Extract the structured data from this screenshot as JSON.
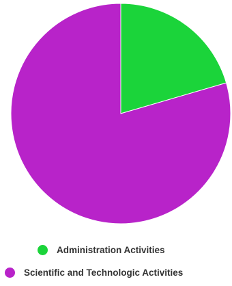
{
  "chart_data": {
    "type": "pie",
    "title": "",
    "slices": [
      {
        "label": "Administration Activities",
        "value": 20.5,
        "color": "#1bd43a"
      },
      {
        "label": "Scientific and Technologic Activities",
        "value": 79.5,
        "color": "#b823c9"
      }
    ],
    "legend_position": "bottom"
  }
}
